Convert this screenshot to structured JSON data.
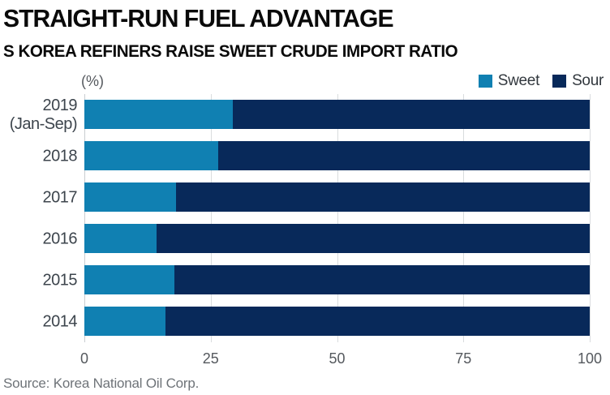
{
  "header": {
    "title": "STRAIGHT-RUN FUEL ADVANTAGE",
    "subtitle": "S KOREA REFINERS RAISE SWEET CRUDE IMPORT RATIO"
  },
  "chart_data": {
    "type": "bar",
    "orientation": "horizontal",
    "stacked": true,
    "title": "S Korea refiners raise sweet crude import ratio",
    "categories": [
      "2019 (Jan-Sep)",
      "2018",
      "2017",
      "2016",
      "2015",
      "2014"
    ],
    "category_display": [
      [
        "2019",
        "(Jan-Sep)"
      ],
      [
        "2018"
      ],
      [
        "2017"
      ],
      [
        "2016"
      ],
      [
        "2015"
      ],
      [
        "2014"
      ]
    ],
    "series": [
      {
        "name": "Sweet",
        "color": "#1080b2",
        "values": [
          29.4,
          26.5,
          18.1,
          14.3,
          17.8,
          16.1
        ]
      },
      {
        "name": "Sour",
        "color": "#08295a",
        "values": [
          70.6,
          73.5,
          81.9,
          85.7,
          82.2,
          83.9
        ]
      }
    ],
    "xlabel": "(%)",
    "xlim": [
      0,
      100
    ],
    "xticks": [
      0,
      25,
      50,
      75,
      100
    ],
    "grid": true,
    "legend_position": "top-right"
  },
  "footer": {
    "source": "Source: Korea National Oil Corp."
  }
}
